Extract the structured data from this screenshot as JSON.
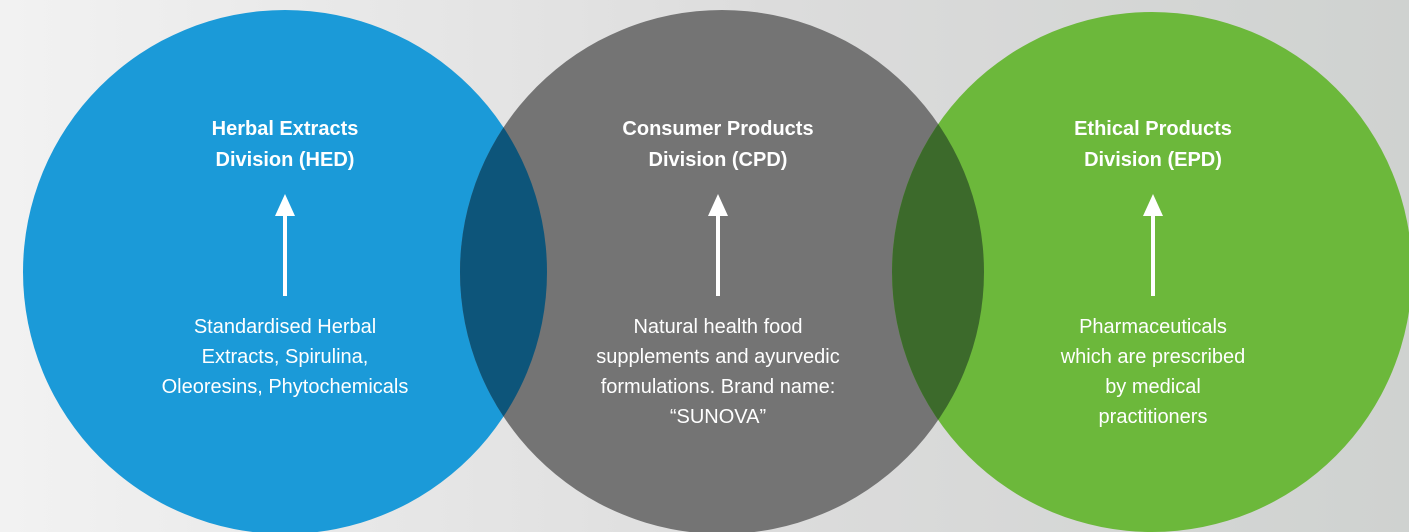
{
  "divisions": [
    {
      "title": [
        "Herbal Extracts",
        "Division (HED)"
      ],
      "description": [
        "Standardised Herbal",
        "Extracts, Spirulina,",
        "Oleoresins, Phytochemicals"
      ]
    },
    {
      "title": [
        "Consumer Products",
        "Division (CPD)"
      ],
      "description": [
        "Natural health food",
        "supplements and ayurvedic",
        "formulations. Brand name:",
        "“SUNOVA”"
      ]
    },
    {
      "title": [
        "Ethical Products",
        "Division (EPD)"
      ],
      "description": [
        "Pharmaceuticals",
        "which are prescribed",
        "by medical",
        "practitioners"
      ]
    }
  ]
}
